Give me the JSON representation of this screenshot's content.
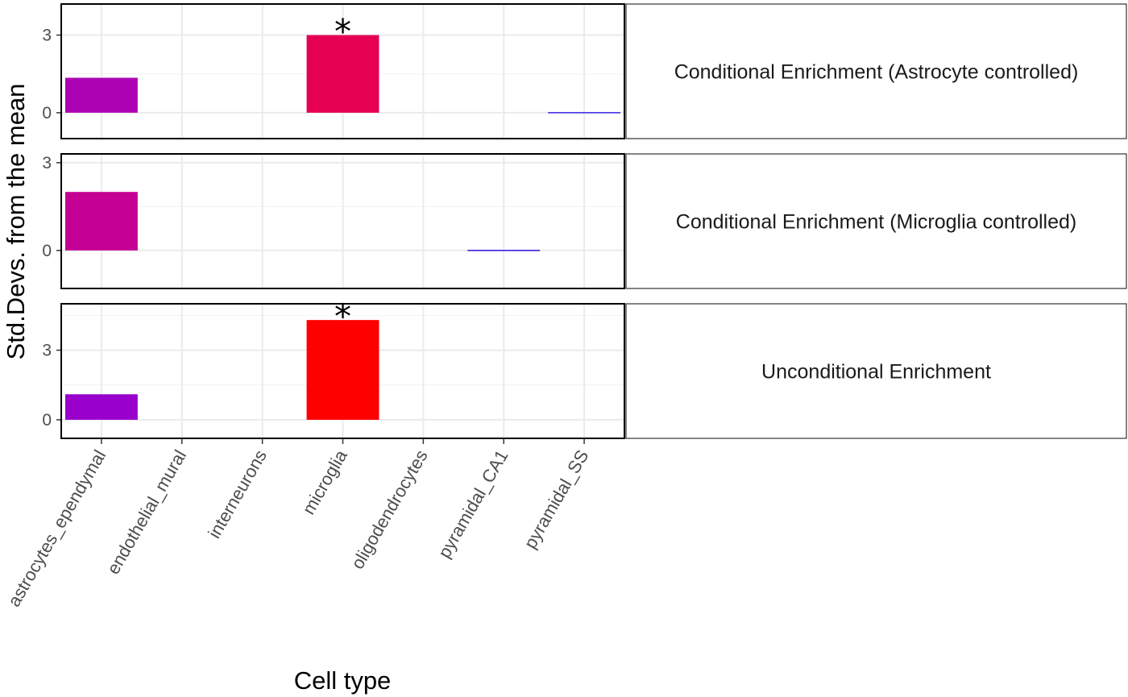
{
  "chart_data": {
    "type": "bar",
    "facet_layout": "stacked panels with labeled strips",
    "categories": [
      "astrocytes_ependymal",
      "endothelial_mural",
      "interneurons",
      "microglia",
      "oligodendrocytes",
      "pyramidal_CA1",
      "pyramidal_SS"
    ],
    "xlabel": "Cell type",
    "ylabel": "Std.Devs. from the mean",
    "grid": true,
    "panels": [
      {
        "strip": "Conditional Enrichment (Astrocyte controlled)",
        "ylim": [
          -1,
          4.2
        ],
        "yticks": [
          0,
          3
        ],
        "values": [
          1.35,
          null,
          null,
          3.0,
          null,
          null,
          0.0
        ],
        "colors": [
          "#ad02b3",
          null,
          null,
          "#e60052",
          null,
          null,
          "#1a00e6"
        ],
        "significant": [
          false,
          false,
          false,
          true,
          false,
          false,
          false
        ]
      },
      {
        "strip": "Conditional Enrichment (Microglia controlled)",
        "ylim": [
          -1.3,
          3.3
        ],
        "yticks": [
          0,
          3
        ],
        "values": [
          2.0,
          null,
          null,
          null,
          null,
          0.0,
          null
        ],
        "colors": [
          "#c50094",
          null,
          null,
          null,
          null,
          "#1a00e6",
          null
        ],
        "significant": [
          false,
          false,
          false,
          false,
          false,
          false,
          false
        ]
      },
      {
        "strip": "Unconditional Enrichment",
        "ylim": [
          -0.8,
          5.0
        ],
        "yticks": [
          0,
          3
        ],
        "values": [
          1.1,
          null,
          null,
          4.3,
          null,
          null,
          null
        ],
        "colors": [
          "#9900cc",
          null,
          null,
          "#ff0000",
          null,
          null,
          null
        ],
        "significant": [
          false,
          false,
          false,
          true,
          false,
          false,
          false
        ]
      }
    ],
    "significance_marker": "*"
  }
}
